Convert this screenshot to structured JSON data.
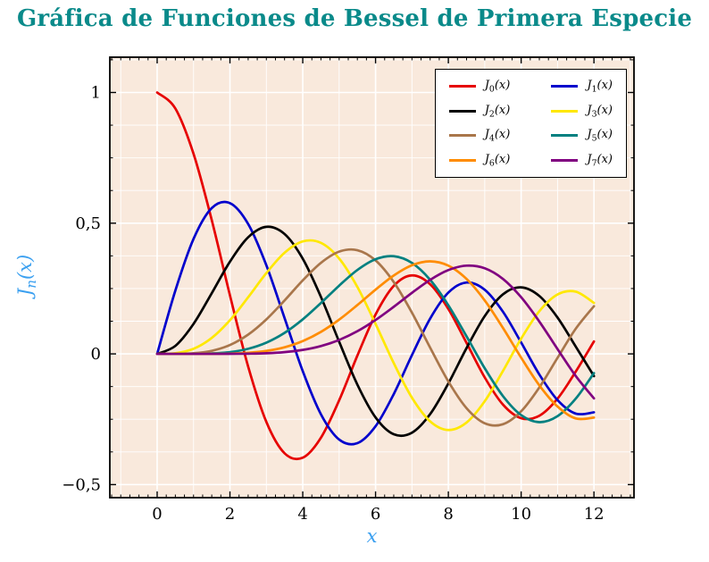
{
  "title": "Gráfica de Funciones de Bessel de Primera Especie",
  "xlabel": "x",
  "ylabel": {
    "sym": "J",
    "sub": "n",
    "args": "(x)"
  },
  "colors": {
    "title": "#0a8a8a",
    "axis_label": "#3ba0f0",
    "plot_bg": "#f9e9dc",
    "grid": "#ffffff",
    "frame": "#000000"
  },
  "chart_data": {
    "type": "line",
    "title": "Gráfica de Funciones de Bessel de Primera Especie",
    "xlabel": "x",
    "ylabel": "J_n(x)",
    "xlim": [
      -1.3,
      13.1
    ],
    "ylim": [
      -0.55,
      1.135
    ],
    "grid": "both",
    "legend_position": "top-right",
    "xticks": [
      {
        "v": 0,
        "label": "0"
      },
      {
        "v": 2,
        "label": "2"
      },
      {
        "v": 4,
        "label": "4"
      },
      {
        "v": 6,
        "label": "6"
      },
      {
        "v": 8,
        "label": "8"
      },
      {
        "v": 10,
        "label": "10"
      },
      {
        "v": 12,
        "label": "12"
      }
    ],
    "yticks": [
      {
        "v": -0.5,
        "label": "−0,5"
      },
      {
        "v": 0,
        "label": "0"
      },
      {
        "v": 0.5,
        "label": "0,5"
      },
      {
        "v": 1,
        "label": "1"
      }
    ],
    "x": [
      0,
      0.5,
      1,
      1.5,
      2,
      2.5,
      3,
      3.5,
      4,
      4.5,
      5,
      5.5,
      6,
      6.5,
      7,
      7.5,
      8,
      8.5,
      9,
      9.5,
      10,
      10.5,
      11,
      11.5,
      12
    ],
    "series": [
      {
        "name": "J_0(x)",
        "sym": "J",
        "sub": "0",
        "args": "(x)",
        "color": "#e60000",
        "values": [
          1,
          0.9385,
          0.7652,
          0.5118,
          0.2239,
          -0.0484,
          -0.2601,
          -0.3801,
          -0.3971,
          -0.3205,
          -0.1776,
          -0.0068,
          0.1506,
          0.2601,
          0.3001,
          0.2663,
          0.1717,
          0.0419,
          -0.0903,
          -0.1939,
          -0.2459,
          -0.2366,
          -0.1712,
          -0.0677,
          0.0477
        ]
      },
      {
        "name": "J_1(x)",
        "sym": "J",
        "sub": "1",
        "args": "(x)",
        "color": "#0000cc",
        "values": [
          0,
          0.2423,
          0.4401,
          0.5579,
          0.5767,
          0.4971,
          0.3391,
          0.1374,
          -0.066,
          -0.2311,
          -0.3276,
          -0.3414,
          -0.2767,
          -0.1538,
          -0.0047,
          0.1352,
          0.2346,
          0.2731,
          0.2453,
          0.1613,
          0.0435,
          -0.0789,
          -0.1768,
          -0.2284,
          -0.2234
        ]
      },
      {
        "name": "J_2(x)",
        "sym": "J",
        "sub": "2",
        "args": "(x)",
        "color": "#000000",
        "values": [
          0,
          0.0306,
          0.1149,
          0.2321,
          0.3528,
          0.4461,
          0.4861,
          0.4586,
          0.3641,
          0.2178,
          0.0466,
          -0.1173,
          -0.2429,
          -0.3074,
          -0.3014,
          -0.2303,
          -0.113,
          0.0223,
          0.1448,
          0.2279,
          0.2546,
          0.2216,
          0.139,
          0.0279,
          -0.0849
        ]
      },
      {
        "name": "J_3(x)",
        "sym": "J",
        "sub": "3",
        "args": "(x)",
        "color": "#ffe800",
        "values": [
          0,
          0.0026,
          0.0196,
          0.061,
          0.1289,
          0.2166,
          0.3091,
          0.3868,
          0.4302,
          0.4247,
          0.3648,
          0.2561,
          0.1148,
          -0.0353,
          -0.1676,
          -0.2581,
          -0.2911,
          -0.2626,
          -0.1809,
          -0.0653,
          0.0584,
          0.1633,
          0.2273,
          0.2381,
          0.1951
        ]
      },
      {
        "name": "J_4(x)",
        "sym": "J",
        "sub": "4",
        "args": "(x)",
        "color": "#a9764b",
        "values": [
          0,
          0.0002,
          0.0025,
          0.0118,
          0.034,
          0.0738,
          0.132,
          0.2044,
          0.2811,
          0.3484,
          0.3912,
          0.3967,
          0.3576,
          0.2748,
          0.1578,
          0.0238,
          -0.1054,
          -0.2077,
          -0.2655,
          -0.2691,
          -0.2196,
          -0.1283,
          -0.015,
          0.0963,
          0.1825
        ]
      },
      {
        "name": "J_5(x)",
        "sym": "J",
        "sub": "5",
        "args": "(x)",
        "color": "#008080",
        "values": [
          0,
          0,
          0.0002,
          0.0018,
          0.007,
          0.0195,
          0.043,
          0.0804,
          0.1321,
          0.1947,
          0.2611,
          0.3209,
          0.3621,
          0.3736,
          0.3479,
          0.2833,
          0.1858,
          0.0671,
          -0.055,
          -0.1613,
          -0.2341,
          -0.2611,
          -0.2383,
          -0.1711,
          -0.0735
        ]
      },
      {
        "name": "J_6(x)",
        "sym": "J",
        "sub": "6",
        "args": "(x)",
        "color": "#ff8c00",
        "values": [
          0,
          0,
          0,
          0.0002,
          0.0012,
          0.0042,
          0.0114,
          0.0254,
          0.0491,
          0.0843,
          0.131,
          0.1868,
          0.2458,
          0.2999,
          0.3392,
          0.3541,
          0.3376,
          0.2867,
          0.2043,
          0.0993,
          -0.0145,
          -0.1203,
          -0.2016,
          -0.247,
          -0.2437
        ]
      },
      {
        "name": "J_7(x)",
        "sym": "J",
        "sub": "7",
        "args": "(x)",
        "color": "#800080",
        "values": [
          0,
          0,
          0,
          0,
          0.0002,
          0.0008,
          0.0025,
          0.0067,
          0.0152,
          0.03,
          0.0534,
          0.0866,
          0.1296,
          0.1801,
          0.2336,
          0.2832,
          0.3206,
          0.3376,
          0.3275,
          0.2868,
          0.2167,
          0.1236,
          0.0184,
          -0.0846,
          -0.1703
        ]
      }
    ]
  }
}
